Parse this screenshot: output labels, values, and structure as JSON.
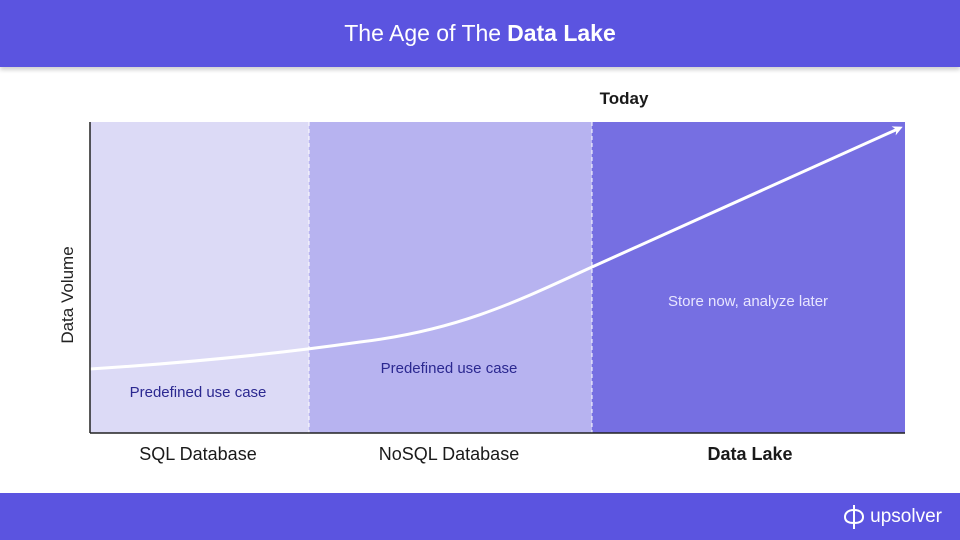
{
  "header": {
    "title_prefix": "The Age of The",
    "title_bold": "Data Lake"
  },
  "chart_data": {
    "type": "area",
    "ylabel": "Data Volume",
    "marker_label": "Today",
    "regions": [
      {
        "label": "SQL Database",
        "note": "Predefined use case",
        "color": "#dcdaf6"
      },
      {
        "label": "NoSQL Database",
        "note": "Predefined use case",
        "color": "#b7b3f0"
      },
      {
        "label": "Data Lake",
        "note": "Store now, analyze later",
        "color": "#766fe2"
      }
    ]
  },
  "footer": {
    "brand": "upsolver"
  },
  "colors": {
    "accent": "#5b54e0"
  }
}
